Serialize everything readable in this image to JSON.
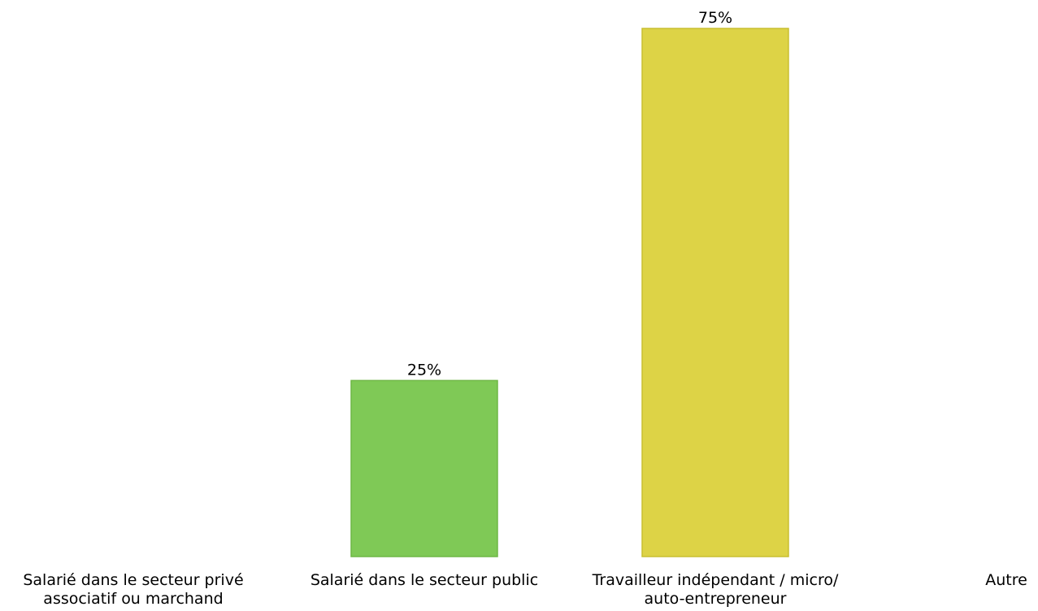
{
  "chart_data": {
    "type": "bar",
    "categories": [
      [
        "Salarié dans le secteur privé",
        "associatif ou marchand"
      ],
      [
        "Salarié dans le secteur public"
      ],
      [
        "Travailleur indépendant / micro/",
        "auto-entrepreneur"
      ],
      [
        "Autre"
      ]
    ],
    "values": [
      0,
      25,
      75,
      0
    ],
    "value_labels": [
      "",
      "25%",
      "75%",
      ""
    ],
    "colors": [
      "#7fc956",
      "#7fc956",
      "#ddd346",
      "#7fc956"
    ],
    "border_colors": [
      "#6fb746",
      "#6fb746",
      "#c9bf30",
      "#6fb746"
    ],
    "ylim": [
      0,
      75
    ],
    "grid": false,
    "title": "",
    "xlabel": "",
    "ylabel": ""
  }
}
